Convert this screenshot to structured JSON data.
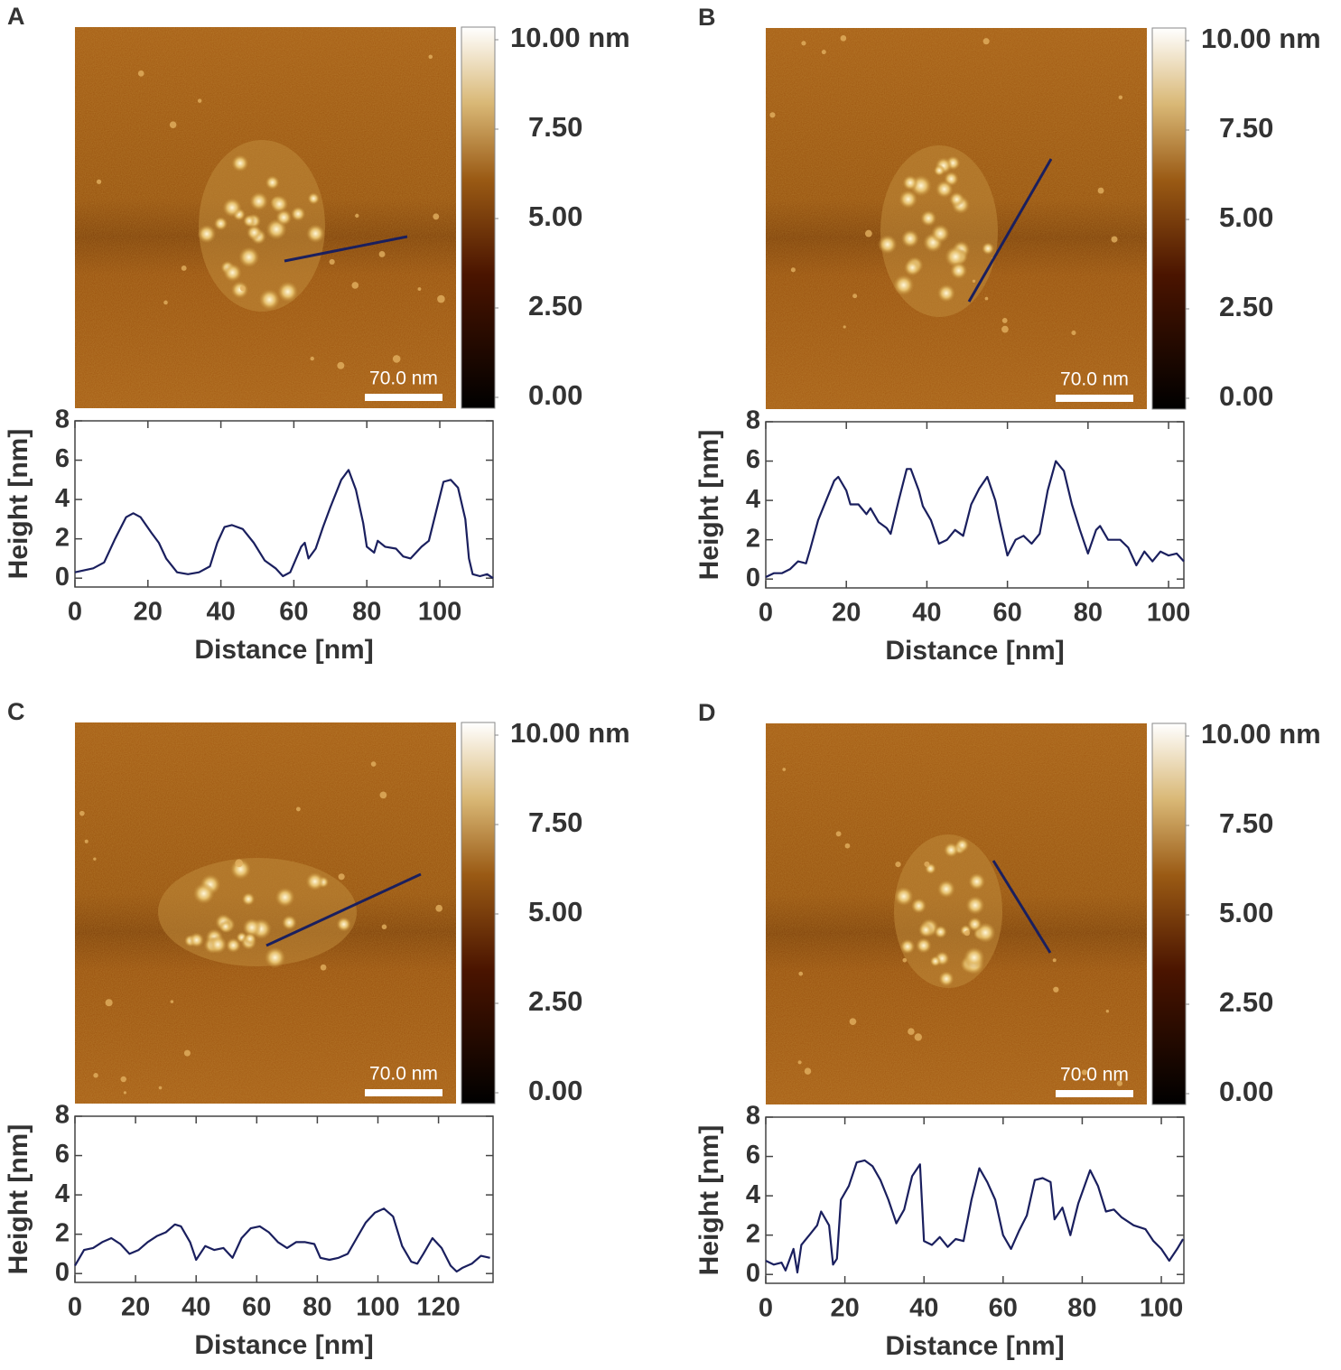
{
  "chart_data": [
    {
      "type": "line",
      "panel": "A",
      "xlabel": "Distance [nm]",
      "ylabel": "Height [nm]",
      "color": "#1a1f5e",
      "x": [
        0,
        5,
        8,
        11,
        14,
        16,
        18,
        21,
        23,
        25,
        28,
        31,
        34,
        37,
        39,
        41,
        43,
        46,
        49,
        52,
        55,
        57,
        59,
        62,
        63,
        64,
        66,
        68,
        70,
        73,
        75,
        77,
        79,
        80,
        82,
        83,
        85,
        88,
        90,
        92,
        95,
        97,
        99,
        101,
        103,
        105,
        107,
        108,
        109,
        111,
        113,
        114.6
      ],
      "values": [
        0.3,
        0.5,
        0.8,
        2.0,
        3.1,
        3.3,
        3.1,
        2.3,
        1.8,
        1.0,
        0.3,
        0.2,
        0.3,
        0.6,
        1.8,
        2.6,
        2.7,
        2.5,
        1.8,
        0.9,
        0.5,
        0.1,
        0.3,
        1.6,
        1.8,
        1.0,
        1.5,
        2.6,
        3.6,
        5.0,
        5.5,
        4.5,
        2.8,
        1.6,
        1.3,
        1.9,
        1.6,
        1.5,
        1.1,
        1.0,
        1.6,
        1.9,
        3.4,
        4.9,
        5.0,
        4.6,
        3.0,
        1.0,
        0.2,
        0.1,
        0.2,
        0.0
      ],
      "xlim": [
        0,
        114.6
      ],
      "ylim": [
        -0.45,
        8
      ],
      "xticks": [
        0,
        20,
        40,
        60,
        80,
        100
      ],
      "yticks": [
        0,
        2,
        4,
        6,
        8
      ],
      "colorbar_ticks": [
        {
          "value": 10,
          "label": "10.00 nm"
        },
        {
          "value": 7.5,
          "label": "7.50"
        },
        {
          "value": 5,
          "label": "5.00"
        },
        {
          "value": 2.5,
          "label": "2.50"
        },
        {
          "value": 0,
          "label": "0.00"
        }
      ],
      "scale_bar": "70.0 nm"
    },
    {
      "type": "line",
      "panel": "B",
      "xlabel": "Distance [nm]",
      "ylabel": "Height [nm]",
      "color": "#1a1f5e",
      "x": [
        0,
        2,
        4,
        6,
        8,
        10,
        11,
        13,
        15,
        17,
        18,
        20,
        21,
        23,
        25,
        26,
        28,
        30,
        31,
        33,
        35,
        36,
        38,
        39,
        41,
        43,
        45,
        47,
        49,
        51,
        53,
        55,
        57,
        58,
        60,
        62,
        64,
        66,
        68,
        70,
        72,
        74,
        76,
        78,
        80,
        82,
        83,
        85,
        88,
        90,
        92,
        94,
        96,
        98,
        100,
        102,
        103.8
      ],
      "values": [
        0.1,
        0.3,
        0.3,
        0.5,
        0.9,
        0.8,
        1.5,
        3.0,
        4.0,
        5.0,
        5.2,
        4.5,
        3.8,
        3.8,
        3.3,
        3.6,
        2.9,
        2.6,
        2.3,
        4.0,
        5.6,
        5.6,
        4.5,
        3.7,
        3.0,
        1.8,
        2.0,
        2.5,
        2.2,
        3.8,
        4.6,
        5.2,
        4.0,
        3.0,
        1.2,
        2.0,
        2.2,
        1.8,
        2.3,
        4.5,
        6.0,
        5.5,
        3.8,
        2.5,
        1.3,
        2.5,
        2.7,
        2.0,
        2.0,
        1.6,
        0.7,
        1.4,
        0.9,
        1.4,
        1.2,
        1.3,
        0.9
      ],
      "xlim": [
        0,
        103.8
      ],
      "ylim": [
        -0.45,
        8
      ],
      "xticks": [
        0,
        20,
        40,
        60,
        80,
        100
      ],
      "yticks": [
        0,
        2,
        4,
        6,
        8
      ],
      "colorbar_ticks": [
        {
          "value": 10,
          "label": "10.00 nm"
        },
        {
          "value": 7.5,
          "label": "7.50"
        },
        {
          "value": 5,
          "label": "5.00"
        },
        {
          "value": 2.5,
          "label": "2.50"
        },
        {
          "value": 0,
          "label": "0.00"
        }
      ],
      "scale_bar": "70.0 nm"
    },
    {
      "type": "line",
      "panel": "C",
      "xlabel": "Distance [nm]",
      "ylabel": "Height [nm]",
      "color": "#1a1f5e",
      "x": [
        0,
        3,
        6,
        9,
        12,
        15,
        18,
        21,
        24,
        27,
        30,
        33,
        35,
        38,
        40,
        43,
        46,
        49,
        52,
        55,
        58,
        61,
        64,
        67,
        70,
        73,
        76,
        79,
        81,
        84,
        87,
        90,
        93,
        96,
        99,
        102,
        105,
        108,
        111,
        113,
        115,
        118,
        121,
        124,
        126,
        128,
        131,
        134,
        137
      ],
      "values": [
        0.4,
        1.2,
        1.3,
        1.6,
        1.8,
        1.5,
        1.0,
        1.2,
        1.6,
        1.9,
        2.1,
        2.5,
        2.4,
        1.6,
        0.7,
        1.4,
        1.2,
        1.3,
        0.8,
        1.8,
        2.3,
        2.4,
        2.1,
        1.6,
        1.3,
        1.6,
        1.6,
        1.5,
        0.8,
        0.7,
        0.8,
        1.0,
        1.8,
        2.6,
        3.1,
        3.3,
        2.9,
        1.4,
        0.6,
        0.5,
        1.0,
        1.8,
        1.3,
        0.4,
        0.1,
        0.3,
        0.5,
        0.9,
        0.8
      ],
      "xlim": [
        0,
        138
      ],
      "ylim": [
        -0.45,
        8
      ],
      "xticks": [
        0,
        20,
        40,
        60,
        80,
        100,
        120
      ],
      "yticks": [
        0,
        2,
        4,
        6,
        8
      ],
      "colorbar_ticks": [
        {
          "value": 10,
          "label": "10.00 nm"
        },
        {
          "value": 7.5,
          "label": "7.50"
        },
        {
          "value": 5,
          "label": "5.00"
        },
        {
          "value": 2.5,
          "label": "2.50"
        },
        {
          "value": 0,
          "label": "0.00"
        }
      ],
      "scale_bar": "70.0 nm"
    },
    {
      "type": "line",
      "panel": "D",
      "xlabel": "Distance [nm]",
      "ylabel": "Height [nm]",
      "color": "#1a1f5e",
      "x": [
        0,
        2,
        4,
        5,
        7,
        8,
        9,
        11,
        13,
        14,
        16,
        17,
        18,
        19,
        21,
        23,
        25,
        27,
        29,
        31,
        33,
        35,
        37,
        39,
        40,
        42,
        44,
        46,
        48,
        50,
        52,
        54,
        56,
        58,
        60,
        62,
        64,
        66,
        68,
        70,
        72,
        73,
        75,
        77,
        79,
        82,
        84,
        86,
        88,
        90,
        93,
        96,
        98,
        100,
        102,
        104,
        105.5
      ],
      "values": [
        0.7,
        0.5,
        0.6,
        0.2,
        1.3,
        0.1,
        1.5,
        2.0,
        2.5,
        3.2,
        2.5,
        0.5,
        0.8,
        3.8,
        4.5,
        5.7,
        5.8,
        5.5,
        4.8,
        3.8,
        2.6,
        3.3,
        5.0,
        5.6,
        1.7,
        1.5,
        1.9,
        1.4,
        1.8,
        1.7,
        3.8,
        5.4,
        4.7,
        3.8,
        2.0,
        1.3,
        2.2,
        3.0,
        4.8,
        4.9,
        4.7,
        2.8,
        3.4,
        2.0,
        3.6,
        5.3,
        4.5,
        3.2,
        3.3,
        2.9,
        2.5,
        2.3,
        1.7,
        1.3,
        0.7,
        1.3,
        1.8
      ],
      "xlim": [
        0,
        105.7
      ],
      "ylim": [
        -0.45,
        8
      ],
      "xticks": [
        0,
        20,
        40,
        60,
        80,
        100
      ],
      "yticks": [
        0,
        2,
        4,
        6,
        8
      ],
      "colorbar_ticks": [
        {
          "value": 10,
          "label": "10.00 nm"
        },
        {
          "value": 7.5,
          "label": "7.50"
        },
        {
          "value": 5,
          "label": "5.00"
        },
        {
          "value": 2.5,
          "label": "2.50"
        },
        {
          "value": 0,
          "label": "0.00"
        }
      ],
      "scale_bar": "70.0 nm"
    }
  ]
}
